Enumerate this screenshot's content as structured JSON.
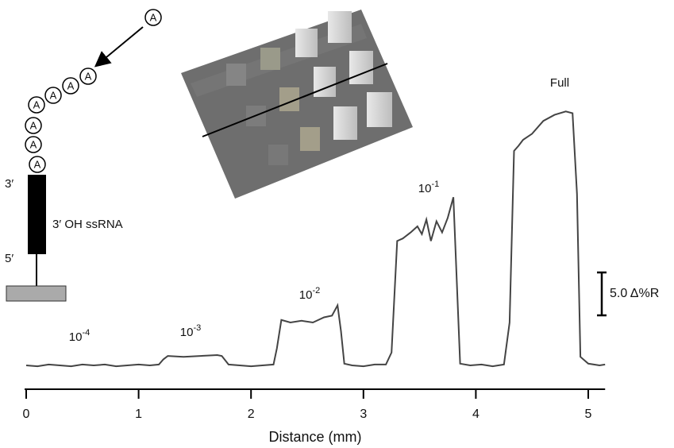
{
  "chart_data": {
    "type": "line",
    "x_label": "Distance (mm)",
    "x": [
      0,
      0.1,
      0.2,
      0.3,
      0.4,
      0.5,
      0.6,
      0.7,
      0.8,
      0.9,
      1.0,
      1.1,
      1.18,
      1.22,
      1.26,
      1.4,
      1.55,
      1.7,
      1.74,
      1.8,
      1.9,
      2.0,
      2.1,
      2.2,
      2.23,
      2.27,
      2.35,
      2.45,
      2.55,
      2.65,
      2.72,
      2.77,
      2.8,
      2.83,
      2.9,
      3.0,
      3.1,
      3.2,
      3.25,
      3.3,
      3.35,
      3.42,
      3.48,
      3.52,
      3.56,
      3.6,
      3.65,
      3.7,
      3.75,
      3.8,
      3.83,
      3.86,
      3.95,
      4.05,
      4.15,
      4.25,
      4.3,
      4.34,
      4.38,
      4.42,
      4.5,
      4.6,
      4.7,
      4.8,
      4.86,
      4.9,
      4.93,
      5.0,
      5.1,
      5.15
    ],
    "series": [
      {
        "color": "#444444",
        "values": [
          0,
          -0.1,
          0.1,
          0,
          -0.1,
          0.1,
          0,
          0.1,
          -0.1,
          0,
          0.1,
          0,
          0.1,
          0.7,
          1.1,
          1.0,
          1.1,
          1.2,
          1.1,
          0.1,
          0,
          -0.1,
          0,
          0.1,
          2.0,
          5.3,
          5.0,
          5.2,
          5.0,
          5.6,
          5.8,
          7.0,
          4.0,
          0.2,
          0,
          -0.1,
          0.1,
          0.1,
          1.5,
          14.5,
          14.8,
          15.5,
          16.2,
          15.3,
          17.0,
          14.5,
          16.8,
          15.5,
          17.2,
          19.6,
          10,
          0.2,
          0,
          0.1,
          -0.1,
          0.1,
          5,
          25.0,
          25.6,
          26.3,
          27.0,
          28.5,
          29.2,
          29.6,
          29.4,
          20,
          1,
          0.2,
          0,
          0.1
        ]
      }
    ],
    "xlim": [
      0,
      5.15
    ],
    "xticks": [
      0,
      1,
      2,
      3,
      4,
      5
    ],
    "ylim": [
      -2,
      32
    ],
    "scale_bar": {
      "value": 5.0,
      "label": "5.0 Δ%R"
    },
    "annotations": [
      {
        "base": "10",
        "exp": "-4"
      },
      {
        "base": "10",
        "exp": "-3"
      },
      {
        "base": "10",
        "exp": "-2"
      },
      {
        "base": "10",
        "exp": "-1"
      },
      {
        "base": "Full"
      }
    ]
  },
  "diagram": {
    "end3": "3′",
    "end5": "5′",
    "label": "3′ OH ssRNA",
    "adenines": [
      "A",
      "A",
      "A",
      "A",
      "A",
      "A",
      "A",
      "A"
    ]
  }
}
